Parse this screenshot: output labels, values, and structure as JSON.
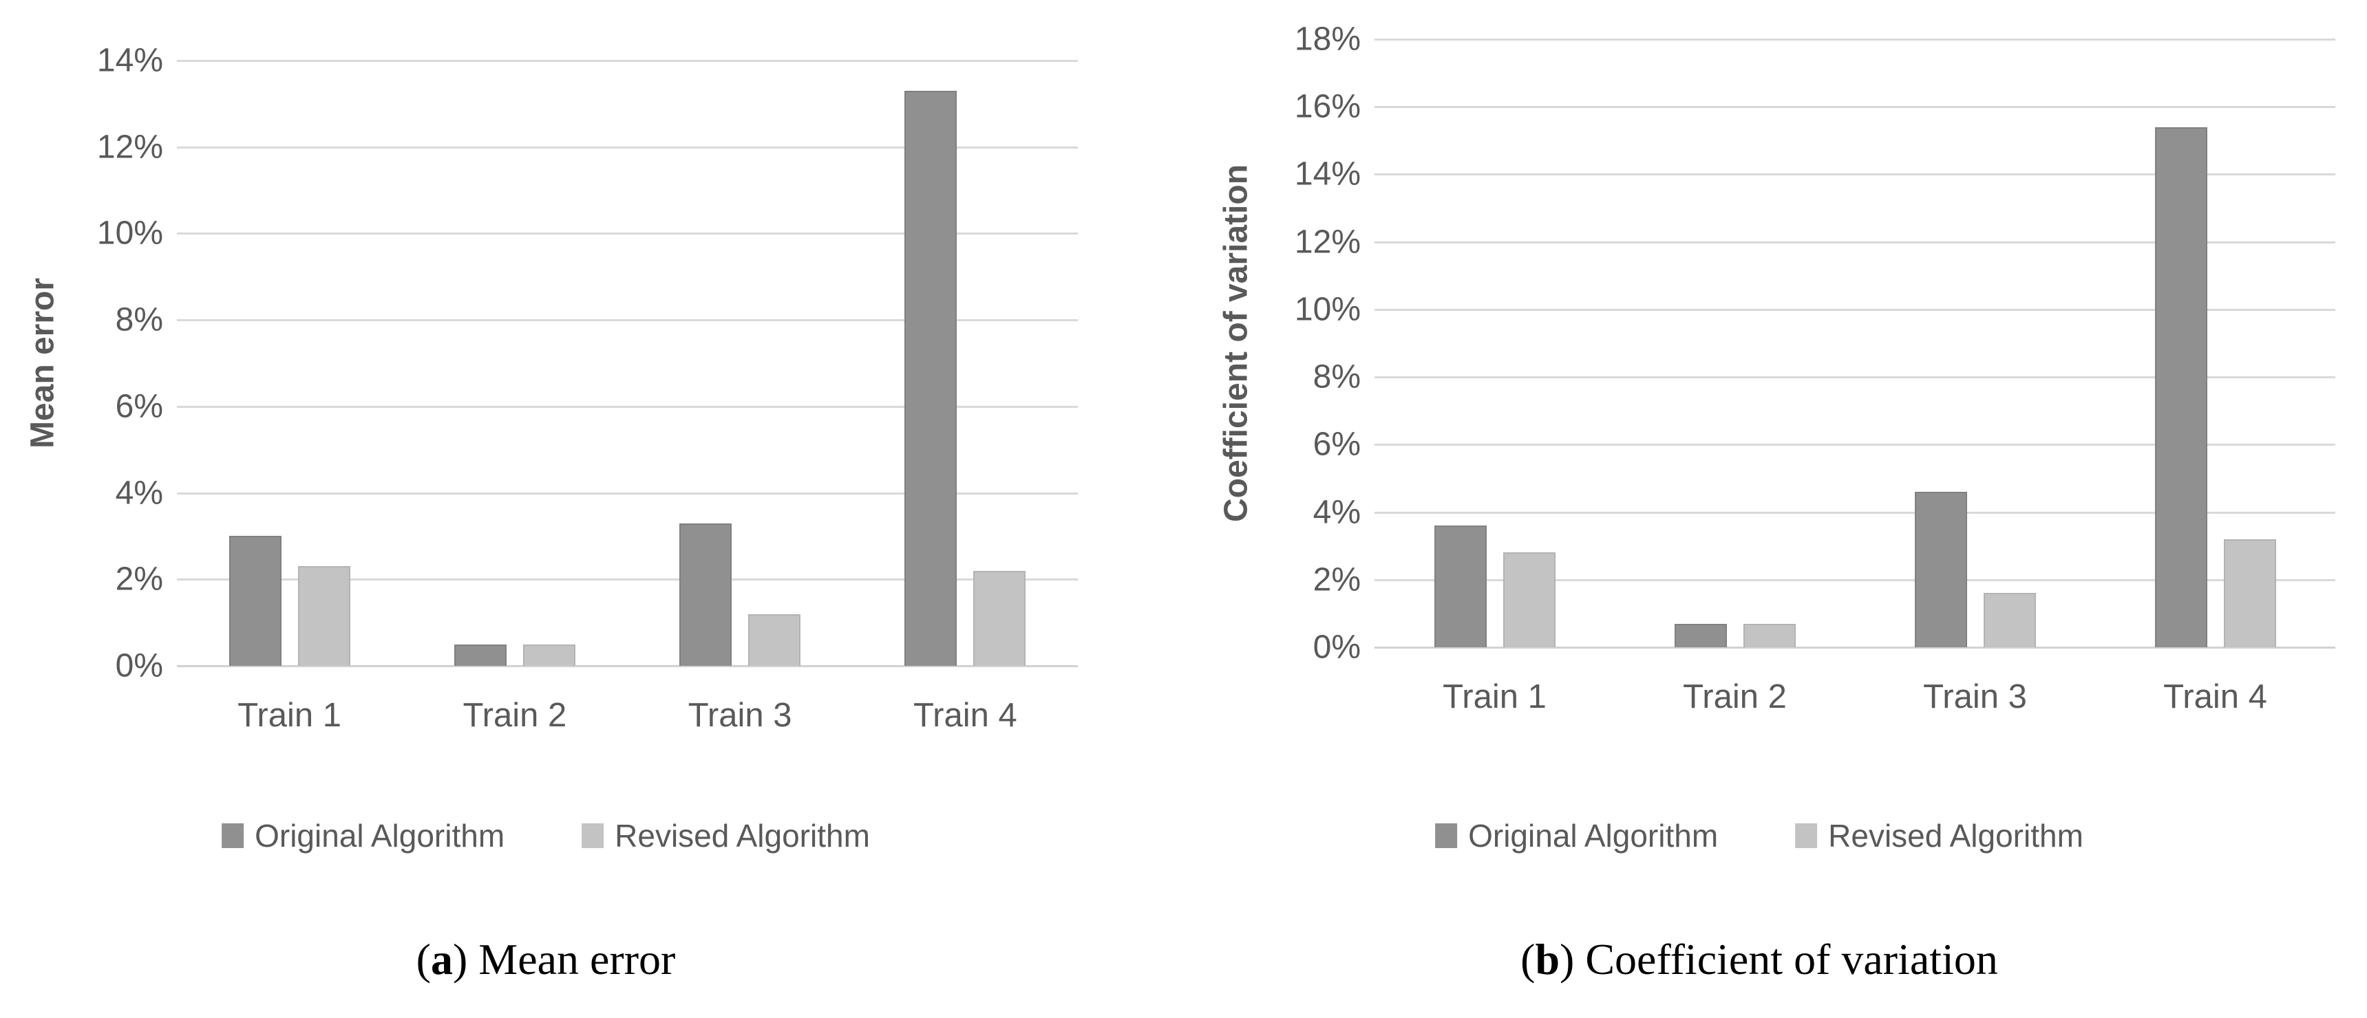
{
  "colors": {
    "background": "#ffffff",
    "original_series": "#909090",
    "original_series_border": "#808080",
    "revised_series": "#c3c3c3",
    "revised_series_border": "#b3b3b3",
    "gridline": "#d9d9d9",
    "axis_line": "#d2d2d2",
    "chart_text": "#595959",
    "caption_text": "#000000"
  },
  "chart_data": [
    {
      "type": "bar",
      "title": "(a) Mean error",
      "caption_letter": "a",
      "caption_label": "Mean error",
      "ylabel": "Mean error",
      "xlabel": "",
      "unit": "%",
      "categories": [
        "Train 1",
        "Train 2",
        "Train 3",
        "Train 4"
      ],
      "series": [
        {
          "name": "Original Algorithm",
          "values": [
            3.0,
            0.5,
            3.3,
            13.3
          ]
        },
        {
          "name": "Revised Algorithm",
          "values": [
            2.3,
            0.5,
            1.2,
            2.2
          ]
        }
      ],
      "ylim": [
        0,
        14
      ],
      "ytick_step": 2,
      "ytick_labels": [
        "0%",
        "2%",
        "4%",
        "6%",
        "8%",
        "10%",
        "12%",
        "14%"
      ],
      "grid": true,
      "legend_position": "bottom"
    },
    {
      "type": "bar",
      "title": "(b) Coefficient of variation",
      "caption_letter": "b",
      "caption_label": "Coefficient of variation",
      "ylabel": "Coefficient of variation",
      "xlabel": "",
      "unit": "%",
      "categories": [
        "Train 1",
        "Train 2",
        "Train 3",
        "Train 4"
      ],
      "series": [
        {
          "name": "Original Algorithm",
          "values": [
            3.6,
            0.7,
            4.6,
            15.4
          ]
        },
        {
          "name": "Revised Algorithm",
          "values": [
            2.8,
            0.7,
            1.6,
            3.2
          ]
        }
      ],
      "ylim": [
        0,
        18
      ],
      "ytick_step": 2,
      "ytick_labels": [
        "0%",
        "2%",
        "4%",
        "6%",
        "8%",
        "10%",
        "12%",
        "14%",
        "16%",
        "18%"
      ],
      "grid": true,
      "legend_position": "bottom"
    }
  ]
}
